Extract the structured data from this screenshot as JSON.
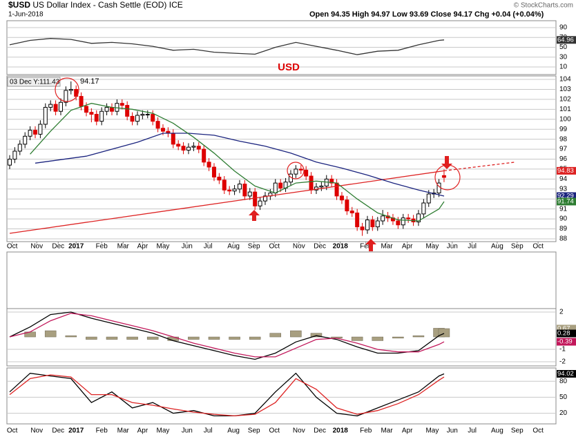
{
  "header": {
    "symbol": "$USD",
    "name": "US Dollar Index - Cash Settle (EOD) ICE",
    "date": "1-Jun-2018",
    "ohlc": "Open 94.35  High 94.97  Low 93.69  Close 94.17  Chg +0.04 (+0.04%)",
    "watermark": "© StockCharts.com"
  },
  "chart_data": [
    {
      "type": "line",
      "title": "USD",
      "ylim": [
        -5.4,
        104
      ],
      "yticks": [
        10,
        30,
        50,
        70,
        90
      ],
      "series": [
        {
          "color": "#333333",
          "x": [
            0,
            4,
            8,
            12,
            16,
            20,
            24,
            28,
            32,
            36,
            40,
            44,
            48,
            52,
            56,
            60,
            64,
            68,
            72,
            76,
            80,
            84,
            85
          ],
          "values": [
            55,
            64,
            68,
            66,
            58,
            60,
            57,
            52,
            44,
            46,
            40,
            38,
            36,
            50,
            60,
            52,
            44,
            35,
            42,
            44,
            55,
            64,
            64.96
          ],
          "last_label": "64.96"
        }
      ]
    },
    {
      "type": "candlestick",
      "legend_text": "03 Dec Y:111.43",
      "legend_value": "94.17",
      "ylim": [
        87.72,
        104.35
      ],
      "yticks": [
        88,
        89,
        90,
        91,
        92,
        93,
        94,
        95,
        96,
        97,
        98,
        99,
        100,
        101,
        102,
        103,
        104
      ],
      "xlim": [
        -0.54,
        106.9
      ],
      "xticks": [
        {
          "value": 0.5,
          "label": "Oct"
        },
        {
          "value": 5.3,
          "label": "Nov"
        },
        {
          "value": 9.5,
          "label": "Dec"
        },
        {
          "value": 13,
          "label": "2017"
        },
        {
          "value": 18,
          "label": "Feb"
        },
        {
          "value": 22.2,
          "label": "Mar"
        },
        {
          "value": 26,
          "label": "Apr"
        },
        {
          "value": 30,
          "label": "May"
        },
        {
          "value": 34.7,
          "label": "Jun"
        },
        {
          "value": 38.8,
          "label": "Jul"
        },
        {
          "value": 43.8,
          "label": "Aug"
        },
        {
          "value": 47.8,
          "label": "Sep"
        },
        {
          "value": 51.8,
          "label": "Oct"
        },
        {
          "value": 56.6,
          "label": "Nov"
        },
        {
          "value": 60.7,
          "label": "Dec"
        },
        {
          "value": 64.7,
          "label": "2018"
        },
        {
          "value": 69.7,
          "label": "Feb"
        },
        {
          "value": 73.8,
          "label": "Mar"
        },
        {
          "value": 77.8,
          "label": "Apr"
        },
        {
          "value": 82.7,
          "label": "May"
        },
        {
          "value": 86.6,
          "label": "Jun"
        },
        {
          "value": 90.5,
          "label": "Jul"
        },
        {
          "value": 95.4,
          "label": "Aug"
        },
        {
          "value": 99.3,
          "label": "Sep"
        },
        {
          "value": 103.4,
          "label": "Oct"
        }
      ],
      "up_color": "#000000",
      "down_color": "#dd0000",
      "x": [
        0,
        1,
        2,
        3,
        4,
        5,
        6,
        7,
        8,
        9,
        10,
        11,
        12,
        13,
        14,
        15,
        16,
        17,
        18,
        19,
        20,
        21,
        22,
        23,
        24,
        25,
        26,
        27,
        28,
        29,
        30,
        31,
        32,
        33,
        34,
        35,
        36,
        37,
        38,
        39,
        40,
        41,
        42,
        43,
        44,
        45,
        46,
        47,
        48,
        49,
        50,
        51,
        52,
        53,
        54,
        55,
        56,
        57,
        58,
        59,
        60,
        61,
        62,
        63,
        64,
        65,
        66,
        67,
        68,
        69,
        70,
        71,
        72,
        73,
        74,
        75,
        76,
        77,
        78,
        79,
        80,
        81,
        82,
        83,
        84,
        85
      ],
      "open": [
        95.4,
        96.0,
        96.8,
        97.5,
        98.3,
        98.9,
        98.5,
        99.5,
        101.2,
        101.5,
        100.8,
        101.7,
        102.9,
        103.0,
        102.3,
        101.3,
        100.7,
        100.5,
        99.8,
        100.8,
        101.2,
        100.8,
        101.6,
        101.4,
        100.3,
        99.8,
        100.4,
        100.5,
        100.5,
        99.8,
        99.1,
        98.8,
        98.6,
        97.5,
        97.3,
        96.9,
        97.2,
        97.3,
        97.0,
        95.7,
        95.2,
        94.2,
        93.9,
        92.9,
        92.8,
        93.0,
        93.5,
        92.3,
        92.7,
        91.3,
        91.8,
        92.3,
        92.6,
        93.6,
        93.1,
        93.7,
        94.5,
        95.0,
        94.9,
        94.3,
        92.9,
        93.2,
        93.3,
        94.0,
        93.6,
        92.3,
        91.9,
        90.8,
        90.6,
        89.2,
        88.9,
        89.9,
        89.2,
        89.8,
        90.3,
        90.1,
        89.8,
        89.4,
        90.1,
        90.0,
        89.7,
        90.5,
        91.6,
        92.5,
        92.6,
        94.35
      ],
      "high": [
        96.4,
        97.2,
        97.9,
        98.7,
        99.3,
        99.3,
        99.9,
        101.6,
        101.9,
        101.9,
        102.1,
        103.3,
        103.8,
        103.4,
        102.7,
        101.7,
        101.1,
        100.9,
        101.2,
        101.6,
        101.6,
        102.0,
        102.0,
        101.8,
        100.7,
        100.8,
        100.9,
        100.9,
        100.9,
        100.2,
        99.5,
        99.2,
        99.0,
        97.9,
        97.7,
        97.6,
        97.7,
        97.7,
        97.4,
        96.1,
        95.6,
        94.6,
        94.3,
        93.3,
        93.4,
        93.9,
        93.9,
        93.1,
        93.1,
        92.2,
        92.7,
        93.0,
        94.0,
        94.0,
        94.1,
        94.9,
        95.4,
        95.4,
        95.3,
        94.7,
        93.6,
        93.7,
        94.4,
        94.4,
        94.0,
        92.7,
        92.3,
        91.2,
        91.0,
        89.6,
        90.3,
        90.3,
        90.2,
        90.9,
        90.7,
        90.5,
        90.2,
        90.5,
        90.5,
        90.4,
        90.9,
        92.0,
        92.9,
        93.0,
        94.0,
        94.97
      ],
      "low": [
        95.0,
        95.6,
        96.4,
        97.1,
        97.9,
        98.1,
        98.1,
        99.1,
        100.8,
        100.4,
        100.4,
        101.3,
        102.5,
        101.9,
        100.9,
        100.3,
        99.7,
        99.4,
        99.4,
        100.4,
        100.4,
        100.4,
        101.0,
        99.9,
        99.4,
        99.4,
        100.0,
        100.1,
        99.4,
        98.7,
        98.4,
        98.2,
        97.1,
        96.9,
        96.5,
        96.5,
        96.8,
        96.6,
        95.3,
        94.8,
        93.8,
        93.5,
        92.5,
        92.4,
        92.4,
        92.6,
        91.9,
        91.9,
        90.9,
        90.9,
        91.4,
        91.9,
        92.2,
        92.7,
        92.7,
        93.3,
        94.1,
        94.5,
        93.9,
        92.5,
        92.5,
        92.8,
        92.9,
        93.2,
        91.9,
        91.5,
        90.4,
        90.2,
        88.8,
        88.3,
        88.5,
        88.8,
        88.8,
        89.4,
        89.7,
        89.4,
        89.0,
        89.0,
        89.6,
        89.3,
        89.3,
        90.1,
        91.2,
        92.1,
        92.2,
        93.69
      ],
      "close": [
        96.0,
        96.8,
        97.5,
        98.3,
        98.9,
        98.5,
        99.5,
        101.2,
        101.5,
        100.8,
        101.7,
        102.9,
        103.0,
        102.3,
        101.3,
        100.7,
        100.5,
        99.8,
        100.8,
        101.2,
        100.8,
        101.6,
        101.4,
        100.3,
        99.8,
        100.4,
        100.5,
        100.5,
        99.8,
        99.1,
        98.8,
        98.6,
        97.5,
        97.3,
        96.9,
        97.2,
        97.3,
        97.0,
        95.7,
        95.2,
        94.2,
        93.9,
        92.9,
        92.8,
        93.0,
        93.5,
        92.3,
        92.7,
        91.3,
        91.8,
        92.3,
        92.6,
        93.6,
        93.1,
        93.7,
        94.5,
        95.0,
        94.9,
        94.3,
        92.9,
        93.2,
        93.3,
        94.0,
        93.6,
        92.3,
        91.9,
        90.8,
        90.6,
        89.2,
        88.9,
        89.9,
        89.2,
        89.8,
        90.3,
        90.1,
        89.8,
        89.4,
        90.1,
        90.0,
        89.7,
        90.5,
        91.6,
        92.5,
        92.6,
        93.6,
        94.17
      ],
      "series": [
        {
          "color": "#dd2222",
          "x": [
            0,
            85
          ],
          "values": [
            88.55,
            94.83
          ],
          "last_label": "94.83"
        },
        {
          "color": "#dd2222",
          "dashed": true,
          "x": [
            85,
            99
          ],
          "values": [
            94.83,
            95.7
          ]
        },
        {
          "color": "#1a237e",
          "x": [
            5,
            15,
            25,
            30,
            35,
            40,
            45,
            50,
            55,
            60,
            65,
            70,
            75,
            80,
            85
          ],
          "values": [
            95.6,
            96.3,
            97.7,
            98.6,
            98.6,
            98.4,
            97.8,
            97.3,
            96.6,
            95.7,
            95.1,
            94.4,
            93.6,
            92.9,
            92.29
          ],
          "last_label": "92.29"
        },
        {
          "color": "#2e7d32",
          "x": [
            4,
            8,
            12,
            16,
            20,
            24,
            28,
            32,
            36,
            40,
            44,
            48,
            52,
            56,
            60,
            64,
            68,
            72,
            76,
            80,
            84,
            85
          ],
          "values": [
            96.5,
            98.8,
            100.9,
            101.6,
            101.2,
            101.0,
            100.6,
            99.6,
            98.2,
            96.6,
            94.8,
            93.3,
            92.6,
            93.6,
            93.8,
            93.6,
            92.0,
            90.6,
            89.9,
            89.8,
            91.0,
            91.74
          ],
          "last_label": "91.74"
        }
      ]
    },
    {
      "type": "macd",
      "ylim": [
        -2.33,
        2.28
      ],
      "yticks": [
        -2,
        -1,
        2
      ],
      "series": [
        {
          "color": "#a89f80",
          "bars": true,
          "x": [
            0,
            4,
            8,
            12,
            16,
            20,
            24,
            28,
            32,
            36,
            40,
            44,
            48,
            52,
            56,
            60,
            64,
            68,
            72,
            76,
            80,
            84,
            85
          ],
          "values": [
            0,
            0.4,
            0.5,
            0.1,
            -0.2,
            -0.2,
            -0.2,
            -0.2,
            -0.3,
            -0.2,
            -0.2,
            -0.2,
            -0.2,
            0.3,
            0.5,
            0.3,
            -0.1,
            -0.3,
            -0.3,
            -0.1,
            0.1,
            0.7,
            0.67
          ],
          "last_label": "0.67"
        },
        {
          "color": "#000000",
          "x": [
            0,
            4,
            8,
            12,
            16,
            20,
            24,
            28,
            32,
            36,
            40,
            44,
            48,
            52,
            56,
            60,
            64,
            68,
            72,
            76,
            80,
            84,
            85
          ],
          "values": [
            0,
            0.8,
            1.8,
            2.0,
            1.5,
            1.1,
            0.7,
            0.3,
            -0.3,
            -0.7,
            -1.1,
            -1.5,
            -1.8,
            -1.3,
            -0.4,
            0.1,
            -0.2,
            -0.8,
            -1.3,
            -1.3,
            -1.1,
            0.1,
            0.28
          ],
          "last_label": "0.28"
        },
        {
          "color": "#c2185b",
          "x": [
            0,
            4,
            8,
            12,
            16,
            20,
            24,
            28,
            32,
            36,
            40,
            44,
            48,
            52,
            56,
            60,
            64,
            68,
            72,
            76,
            80,
            84,
            85
          ],
          "values": [
            0,
            0.4,
            1.3,
            1.9,
            1.7,
            1.3,
            0.9,
            0.5,
            0,
            -0.5,
            -0.9,
            -1.3,
            -1.6,
            -1.6,
            -0.9,
            -0.2,
            -0.1,
            -0.5,
            -1.0,
            -1.2,
            -1.2,
            -0.6,
            -0.39
          ],
          "last_label": "-0.39"
        }
      ]
    },
    {
      "type": "line",
      "ylim": [
        0,
        105
      ],
      "yticks": [
        20,
        50,
        80
      ],
      "series": [
        {
          "color": "#000000",
          "x": [
            0,
            4,
            8,
            12,
            16,
            20,
            24,
            28,
            32,
            36,
            40,
            44,
            48,
            52,
            56,
            60,
            64,
            68,
            72,
            76,
            80,
            84,
            85
          ],
          "values": [
            60,
            95,
            90,
            85,
            40,
            60,
            30,
            40,
            20,
            25,
            15,
            15,
            20,
            60,
            95,
            50,
            20,
            15,
            30,
            45,
            60,
            90,
            94.02
          ],
          "last_label": "94.02"
        },
        {
          "color": "#dd2222",
          "x": [
            0,
            4,
            8,
            12,
            16,
            20,
            24,
            28,
            32,
            36,
            40,
            44,
            48,
            52,
            56,
            60,
            64,
            68,
            72,
            76,
            80,
            84,
            85
          ],
          "values": [
            55,
            85,
            92,
            88,
            55,
            55,
            40,
            35,
            28,
            22,
            18,
            15,
            18,
            40,
            85,
            65,
            30,
            18,
            25,
            38,
            55,
            82,
            88
          ]
        }
      ]
    }
  ]
}
